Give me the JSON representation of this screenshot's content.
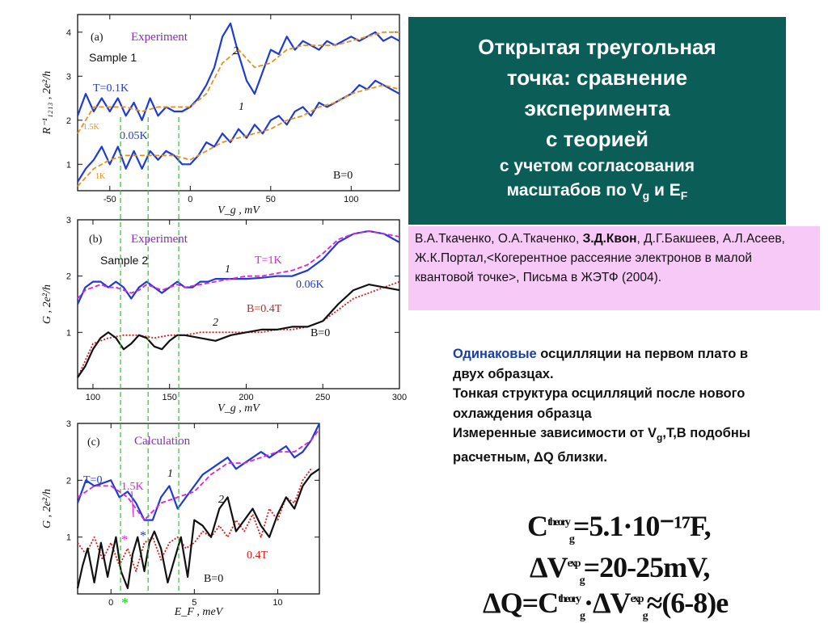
{
  "slide": {
    "title_lines": [
      "Открытая треугольная",
      "точка: сравнение",
      "эксперимента",
      "с теорией"
    ],
    "subtitle_line1": "с учетом согласования",
    "subtitle_line2_prefix": "масштабов по V",
    "subtitle_line2_sub1": "g",
    "subtitle_line2_mid": " и E",
    "subtitle_line2_sub2": "F",
    "reference": {
      "authors_before": "В.А.Ткаченко, О.А.Ткаченко, ",
      "author_bold": "З.Д.Квон",
      "authors_after": ", Д.Г.Бакшеев, А.Л.Асеев, Ж.К.Портал,<Когерентное рассеяние электронов в малой квантовой точке>, Письма в ЖЭТФ (2004)."
    },
    "notes": {
      "highlight": "Одинаковые",
      "line1_rest": " осцилляции на первом плато в двух образцах.",
      "line2": "Тонкая структура осцилляций после нового охлаждения образца",
      "line3_a": "Измеренные зависимости от V",
      "line3_sub": "g",
      "line3_b": ",T,B подобны расчетным, ΔQ близки."
    },
    "formulas": {
      "f1_main": "C",
      "f1_sup": "theory",
      "f1_sub": "g",
      "f1_rest": "=5.1·10⁻¹⁷F,",
      "f2_main": "ΔV",
      "f2_sup": "exp",
      "f2_sub": "g",
      "f2_rest": "=20-25mV,",
      "f3_main": "ΔQ=C",
      "f3_sup": "theory",
      "f3_sub": "g",
      "f3_mid": "·ΔV",
      "f3_sup2": "exp",
      "f3_sub2": "g",
      "f3_rest": "≈(6-8)e"
    }
  },
  "colors": {
    "title_bg": "#0b5d58",
    "ref_bg": "#f7c9f7",
    "blue": "#1f3bd6",
    "orange": "#e8901e",
    "magenta": "#e020e0",
    "red": "#e01818",
    "green": "#22cc22",
    "black": "#111111"
  },
  "chart_data": [
    {
      "type": "line",
      "panel": "(a)",
      "title": "Experiment",
      "sample": "Sample 1",
      "xlabel": "V_g , mV",
      "ylabel": "R⁻¹₁₂₁₃ , 2e²/h",
      "xlim": [
        -70,
        130
      ],
      "ylim": [
        0.4,
        4.4
      ],
      "xticks": [
        -50,
        0,
        50,
        100
      ],
      "yticks": [
        1,
        2,
        3,
        4
      ],
      "labels": {
        "t1": "T=0.1K",
        "t2": "0.05K",
        "t3": "1.5K",
        "t4": "1K",
        "b": "B=0",
        "c1": "1",
        "c2": "2"
      },
      "series": [
        {
          "name": "T=0.1K",
          "color": "blue",
          "dash": false,
          "x": [
            -70,
            -65,
            -60,
            -55,
            -50,
            -45,
            -40,
            -35,
            -30,
            -25,
            -20,
            -15,
            -10,
            -5,
            0,
            5,
            10,
            15,
            20,
            25,
            30,
            35,
            40,
            45,
            50,
            55,
            60,
            65,
            70,
            75,
            80,
            85,
            90,
            95,
            100,
            105,
            110,
            115,
            120,
            125,
            130
          ],
          "y": [
            2.1,
            2.6,
            2.2,
            2.5,
            2.2,
            2.5,
            2.1,
            2.4,
            2.0,
            2.5,
            2.1,
            2.3,
            2.2,
            2.2,
            2.3,
            2.5,
            2.8,
            3.2,
            3.9,
            4.2,
            3.5,
            2.9,
            2.6,
            3.1,
            3.6,
            3.5,
            3.9,
            3.6,
            3.8,
            3.7,
            3.6,
            3.8,
            3.7,
            3.8,
            3.9,
            3.8,
            3.9,
            4.0,
            3.8,
            3.9,
            3.8
          ]
        },
        {
          "name": "1.5K",
          "color": "orange",
          "dash": true,
          "x": [
            -70,
            -60,
            -50,
            -40,
            -30,
            -20,
            -10,
            0,
            10,
            20,
            30,
            40,
            50,
            60,
            70,
            80,
            90,
            100,
            110,
            120,
            130
          ],
          "y": [
            1.7,
            2.3,
            2.3,
            2.3,
            2.2,
            2.3,
            2.3,
            2.3,
            2.6,
            3.3,
            3.6,
            3.2,
            3.3,
            3.6,
            3.7,
            3.7,
            3.7,
            3.8,
            3.9,
            4.0,
            4.0
          ]
        },
        {
          "name": "0.05K",
          "color": "blue",
          "dash": false,
          "x": [
            -70,
            -65,
            -60,
            -55,
            -50,
            -45,
            -40,
            -35,
            -30,
            -25,
            -20,
            -15,
            -10,
            -5,
            0,
            5,
            10,
            15,
            20,
            25,
            30,
            35,
            40,
            45,
            50,
            55,
            60,
            65,
            70,
            75,
            80,
            85,
            90,
            95,
            100,
            105,
            110,
            115,
            120,
            125,
            130
          ],
          "y": [
            0.6,
            0.9,
            1.1,
            1.4,
            1.0,
            1.4,
            0.9,
            1.3,
            0.9,
            1.3,
            1.1,
            1.3,
            1.2,
            1.0,
            1.0,
            1.2,
            1.5,
            1.4,
            1.7,
            1.5,
            1.8,
            1.6,
            1.9,
            1.7,
            2.0,
            2.1,
            1.9,
            2.2,
            2.3,
            2.1,
            2.4,
            2.3,
            2.4,
            2.5,
            2.6,
            2.8,
            2.7,
            2.9,
            2.8,
            2.7,
            2.6
          ]
        },
        {
          "name": "1K",
          "color": "orange",
          "dash": true,
          "x": [
            -70,
            -60,
            -50,
            -40,
            -30,
            -20,
            -10,
            0,
            10,
            20,
            30,
            40,
            50,
            60,
            70,
            80,
            90,
            100,
            110,
            120,
            130
          ],
          "y": [
            0.5,
            0.9,
            1.1,
            1.2,
            1.2,
            1.2,
            1.2,
            1.1,
            1.3,
            1.5,
            1.6,
            1.7,
            1.8,
            2.0,
            2.1,
            2.3,
            2.4,
            2.6,
            2.7,
            2.8,
            2.7
          ]
        }
      ]
    },
    {
      "type": "line",
      "panel": "(b)",
      "title": "Experiment",
      "sample": "Sample 2",
      "xlabel": "V_g , mV",
      "ylabel": "G , 2e²/h",
      "xlim": [
        90,
        300
      ],
      "ylim": [
        0,
        3
      ],
      "xticks": [
        100,
        150,
        200,
        250,
        300
      ],
      "yticks": [
        1,
        2,
        3
      ],
      "labels": {
        "t1": "T=1K",
        "t2": "0.06K",
        "b1": "B=0.4T",
        "b2": "B=0",
        "c1": "1",
        "c2": "2"
      },
      "series": [
        {
          "name": "0.06K",
          "color": "blue",
          "dash": false,
          "x": [
            90,
            95,
            100,
            105,
            110,
            115,
            120,
            125,
            130,
            135,
            140,
            145,
            150,
            155,
            160,
            165,
            170,
            175,
            180,
            190,
            200,
            210,
            220,
            230,
            240,
            250,
            260,
            270,
            280,
            290,
            300
          ],
          "y": [
            1.5,
            1.8,
            1.9,
            1.9,
            1.8,
            1.9,
            1.8,
            1.6,
            1.8,
            1.9,
            1.8,
            1.7,
            1.8,
            1.9,
            1.8,
            1.8,
            1.9,
            1.9,
            1.95,
            1.95,
            1.95,
            1.97,
            2.0,
            2.0,
            2.1,
            2.3,
            2.6,
            2.75,
            2.8,
            2.75,
            2.6
          ]
        },
        {
          "name": "T=1K",
          "color": "magenta",
          "dash": true,
          "x": [
            90,
            95,
            100,
            105,
            110,
            115,
            120,
            125,
            130,
            135,
            140,
            145,
            150,
            155,
            160,
            170,
            180,
            190,
            200,
            210,
            220,
            230,
            240,
            250,
            260,
            270,
            280,
            290,
            300
          ],
          "y": [
            1.6,
            1.75,
            1.8,
            1.85,
            1.8,
            1.8,
            1.75,
            1.7,
            1.75,
            1.85,
            1.8,
            1.75,
            1.8,
            1.85,
            1.8,
            1.85,
            1.9,
            1.95,
            2.0,
            2.0,
            2.05,
            2.1,
            2.2,
            2.4,
            2.65,
            2.75,
            2.8,
            2.75,
            2.7
          ]
        },
        {
          "name": "B=0.4T",
          "color": "red",
          "dash": true,
          "x": [
            90,
            100,
            110,
            120,
            130,
            140,
            150,
            160,
            170,
            180,
            190,
            200,
            210,
            220,
            230,
            240,
            250,
            260,
            270,
            280,
            290,
            300
          ],
          "y": [
            0.2,
            0.8,
            0.9,
            0.95,
            0.95,
            0.9,
            0.95,
            0.95,
            1.0,
            1.0,
            1.0,
            1.0,
            1.0,
            1.05,
            1.05,
            1.1,
            1.2,
            1.4,
            1.6,
            1.7,
            1.8,
            1.9
          ]
        },
        {
          "name": "B=0",
          "color": "black",
          "dash": false,
          "x": [
            90,
            95,
            100,
            105,
            110,
            115,
            120,
            125,
            130,
            135,
            140,
            145,
            150,
            155,
            160,
            170,
            180,
            190,
            200,
            210,
            220,
            230,
            240,
            250,
            260,
            270,
            280,
            290,
            300
          ],
          "y": [
            0.2,
            0.4,
            0.7,
            0.9,
            1.0,
            0.9,
            0.7,
            0.8,
            0.95,
            0.9,
            0.75,
            0.7,
            0.85,
            0.95,
            0.95,
            0.9,
            0.85,
            0.95,
            1.0,
            1.05,
            1.05,
            1.1,
            1.1,
            1.2,
            1.5,
            1.75,
            1.85,
            1.8,
            1.75
          ]
        }
      ]
    },
    {
      "type": "line",
      "panel": "(c)",
      "title": "Calculation",
      "xlabel": "E_F , meV",
      "ylabel": "G , 2e²/h",
      "xlim": [
        -2,
        12.5
      ],
      "ylim": [
        0,
        3
      ],
      "xticks": [
        0,
        5,
        10
      ],
      "yticks": [
        1,
        2,
        3
      ],
      "labels": {
        "t1": "T=0",
        "t2": "1.5K",
        "b1": "0.4T",
        "b2": "B=0",
        "c1": "1",
        "c2": "2",
        "star": "*"
      },
      "series": [
        {
          "name": "T=0",
          "color": "blue",
          "dash": false,
          "x": [
            -2,
            -1.5,
            -1,
            -0.5,
            0,
            0.5,
            1,
            1.5,
            2,
            2.5,
            3,
            3.5,
            4,
            4.5,
            5,
            5.5,
            6,
            6.5,
            7,
            7.5,
            8,
            8.5,
            9,
            9.5,
            10,
            10.5,
            11,
            11.5,
            12,
            12.5
          ],
          "y": [
            1.6,
            2.0,
            1.9,
            1.95,
            2.0,
            1.7,
            1.8,
            1.6,
            1.3,
            1.3,
            1.7,
            1.9,
            1.5,
            1.7,
            1.9,
            2.1,
            2.2,
            2.3,
            2.4,
            2.2,
            2.3,
            2.4,
            2.5,
            2.4,
            2.5,
            2.6,
            2.4,
            2.5,
            2.7,
            3.0
          ]
        },
        {
          "name": "1.5K",
          "color": "magenta",
          "dash": true,
          "x": [
            -2,
            -1,
            0,
            1,
            2,
            3,
            4,
            5,
            6,
            7,
            8,
            9,
            10,
            11,
            12,
            12.5
          ],
          "y": [
            1.7,
            1.9,
            1.9,
            1.7,
            1.3,
            1.6,
            1.7,
            1.8,
            2.1,
            2.3,
            2.3,
            2.4,
            2.5,
            2.5,
            2.7,
            2.9
          ]
        },
        {
          "name": "0.4T",
          "color": "red",
          "dash": true,
          "x": [
            -2,
            -1.5,
            -1,
            -0.5,
            0,
            0.5,
            1,
            1.5,
            2,
            2.5,
            3,
            3.5,
            4,
            4.5,
            5,
            5.5,
            6,
            6.5,
            7,
            7.5,
            8,
            8.5,
            9,
            9.5,
            10,
            10.5,
            11,
            11.5,
            12
          ],
          "y": [
            0.9,
            0.7,
            1.0,
            0.6,
            0.9,
            0.5,
            0.8,
            0.4,
            0.9,
            1.0,
            0.6,
            0.9,
            1.0,
            0.8,
            0.9,
            1.1,
            1.0,
            1.2,
            1.0,
            1.3,
            1.1,
            1.4,
            1.0,
            1.5,
            1.3,
            1.7,
            1.6,
            2.0,
            2.2
          ]
        },
        {
          "name": "B=0",
          "color": "black",
          "dash": false,
          "x": [
            -2,
            -1.7,
            -1.4,
            -1,
            -0.6,
            -0.2,
            0,
            0.3,
            0.6,
            1,
            1.3,
            1.6,
            2,
            2.3,
            2.6,
            3,
            3.4,
            3.8,
            4.2,
            4.6,
            5,
            5.5,
            6,
            6.5,
            7,
            7.5,
            8,
            8.5,
            9,
            9.5,
            10,
            10.5,
            11,
            11.5,
            12,
            12.5
          ],
          "y": [
            0.1,
            0.5,
            0.8,
            0.2,
            0.9,
            0.3,
            0.6,
            1.0,
            0.4,
            0.1,
            0.7,
            1.0,
            0.4,
            0.9,
            1.1,
            0.8,
            0.2,
            0.6,
            1.0,
            0.3,
            1.3,
            1.2,
            1.0,
            1.5,
            1.7,
            1.1,
            1.3,
            1.5,
            1.2,
            1.0,
            1.4,
            1.7,
            1.5,
            1.9,
            2.1,
            2.2
          ]
        }
      ]
    }
  ]
}
